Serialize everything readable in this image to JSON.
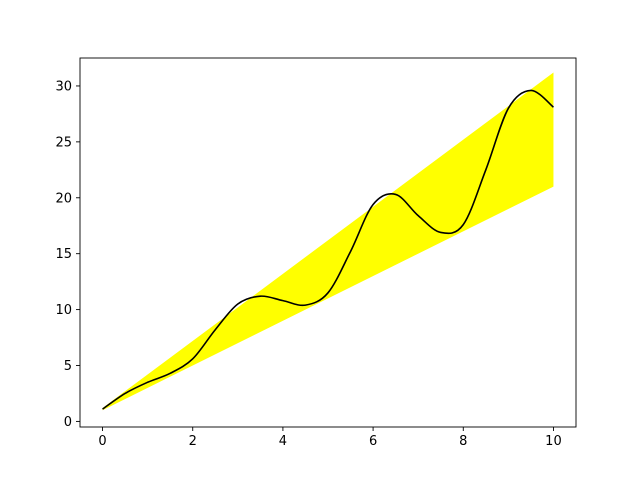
{
  "chart_data": {
    "type": "line",
    "title": "",
    "xlabel": "",
    "ylabel": "",
    "xlim": [
      -0.5,
      10.5
    ],
    "ylim": [
      -0.5,
      32.5
    ],
    "grid": false,
    "legend": "none",
    "x_ticks": [
      0,
      2,
      4,
      6,
      8,
      10
    ],
    "x_tick_labels": [
      "0",
      "2",
      "4",
      "6",
      "8",
      "10"
    ],
    "y_ticks": [
      0,
      5,
      10,
      15,
      20,
      25,
      30
    ],
    "y_tick_labels": [
      "0",
      "5",
      "10",
      "15",
      "20",
      "25",
      "30"
    ],
    "band": {
      "color": "#ffff00",
      "x": [
        0,
        10
      ],
      "lower": [
        1,
        21
      ],
      "upper": [
        1.2,
        31.2
      ]
    },
    "series": [
      {
        "color": "#000000",
        "x": [
          0,
          0.5,
          1,
          1.5,
          2,
          2.5,
          3,
          3.5,
          4,
          4.5,
          5,
          5.5,
          6,
          6.5,
          7,
          7.5,
          8,
          8.5,
          9,
          9.5,
          10
        ],
        "y": [
          1.1,
          2.5,
          3.5,
          4.3,
          5.6,
          8.2,
          10.5,
          11.2,
          10.8,
          10.4,
          11.5,
          15.2,
          19.4,
          20.3,
          18.4,
          16.9,
          17.6,
          22.5,
          28.0,
          29.6,
          28.1
        ]
      }
    ]
  }
}
